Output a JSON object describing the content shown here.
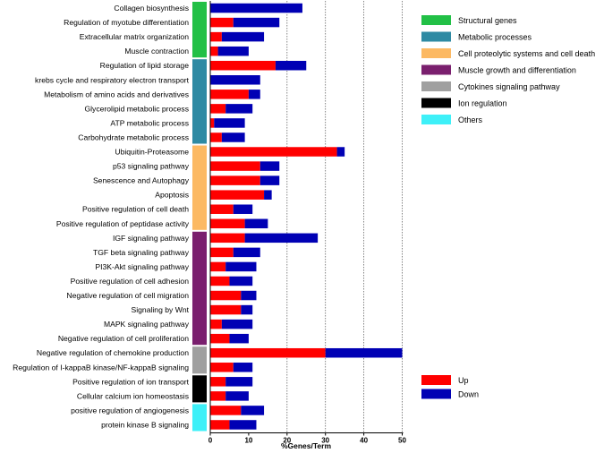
{
  "chart_data": {
    "type": "bar",
    "stacked": true,
    "orientation": "horizontal",
    "xlabel": "%Genes/Term",
    "xlim": [
      0,
      50
    ],
    "xticks": [
      0,
      10,
      20,
      30,
      40,
      50
    ],
    "grid": "vertical dotted at 20, 30, 40, 50",
    "categories": [
      "Collagen biosynthesis",
      "Regulation of myotube differentiation",
      "Extracellular matrix organization",
      "Muscle contraction",
      "Regulation of lipid storage",
      "krebs cycle and respiratory electron transport",
      "Metabolism of amino acids and derivatives",
      "Glycerolipid metabolic process",
      "ATP metabolic process",
      "Carbohydrate metabolic process",
      "Ubiquitin-Proteasome",
      "p53 signaling pathway",
      "Senescence and Autophagy",
      "Apoptosis",
      "Positive regulation of cell death",
      "Positive regulation of peptidase activity",
      "IGF signaling pathway",
      "TGF beta signaling pathway",
      "PI3K-Akt signaling pathway",
      "Positive regulation of cell adhesion",
      "Negative regulation of cell migration",
      "Signaling by Wnt",
      "MAPK signaling pathway",
      "Negative regulation of cell proliferation",
      "Negative regulation of chemokine production",
      "Regulation of I-kappaB kinase/NF-kappaB signaling",
      "Positive regulation of ion transport",
      "Cellular calcium ion homeostasis",
      "positive regulation of angiogenesis",
      "protein kinase B signaling"
    ],
    "series": [
      {
        "name": "Up",
        "color": "#ff0000",
        "values": [
          0,
          6,
          3,
          2,
          17,
          0,
          10,
          4,
          1,
          3,
          33,
          13,
          13,
          14,
          6,
          9,
          9,
          6,
          4,
          5,
          8,
          8,
          3,
          5,
          30,
          6,
          4,
          4,
          8,
          5
        ]
      },
      {
        "name": "Down",
        "color": "#0000b4",
        "values": [
          24,
          12,
          11,
          8,
          8,
          13,
          3,
          7,
          8,
          6,
          2,
          5,
          5,
          2,
          5,
          6,
          19,
          7,
          8,
          6,
          4,
          3,
          8,
          5,
          20,
          5,
          7,
          6,
          6,
          7
        ]
      }
    ],
    "groups": [
      {
        "name": "Structural genes",
        "color": "#22c046",
        "start": 0,
        "end": 3
      },
      {
        "name": "Metabolic processes",
        "color": "#2e8aa3",
        "start": 4,
        "end": 9
      },
      {
        "name": "Cell proteolytic systems and cell death",
        "color": "#fcb963",
        "start": 10,
        "end": 15
      },
      {
        "name": "Muscle growth and differentiation",
        "color": "#7a1f6e",
        "start": 16,
        "end": 23
      },
      {
        "name": "Cytokines signaling pathway",
        "color": "#a0a0a0",
        "start": 24,
        "end": 25
      },
      {
        "name": "Ion regulation",
        "color": "#000000",
        "start": 26,
        "end": 27
      },
      {
        "name": "Others",
        "color": "#3ef0f8",
        "start": 28,
        "end": 29
      }
    ]
  }
}
